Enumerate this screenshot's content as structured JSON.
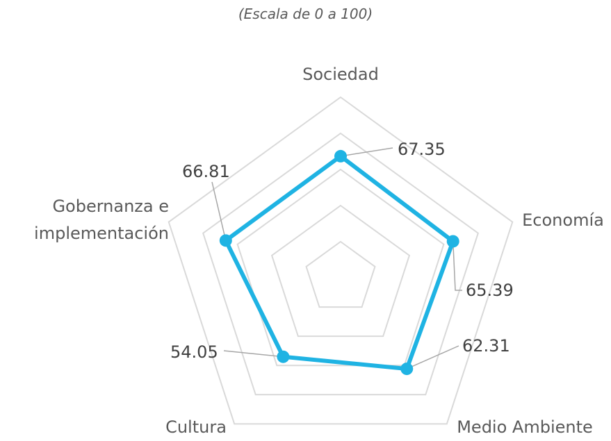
{
  "chart_data": {
    "type": "radar",
    "title": "(Escala de 0 a 100)",
    "categories": [
      "Sociedad",
      "Economía",
      "Medio Ambiente",
      "Cultura",
      "Gobernanza e implementación"
    ],
    "values": [
      67.35,
      65.39,
      62.31,
      54.05,
      66.81
    ],
    "color": "#1fb3e3",
    "ylim": [
      0,
      100
    ],
    "yticks": [
      0,
      20,
      40,
      60,
      80,
      100
    ],
    "grid": true
  }
}
